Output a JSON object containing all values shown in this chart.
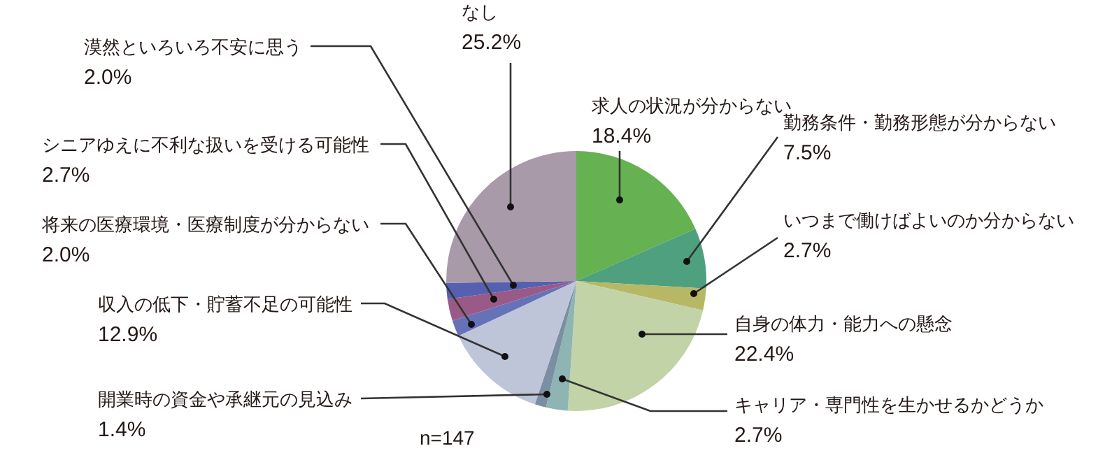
{
  "chart_data": {
    "type": "pie",
    "categories": [
      "求人の状況が分からない",
      "勤務条件・勤務形態が分からない",
      "いつまで働けばよいのか分からない",
      "自身の体力・能力への懸念",
      "キャリア・専門性を生かせるかどうか",
      "開業時の資金や承継元の見込み",
      "収入の低下・貯蓄不足の可能性",
      "将来の医療環境・医療制度が分からない",
      "シニアゆえに不利な扱いを受ける可能性",
      "漠然といろいろ不安に思う",
      "なし"
    ],
    "values": [
      18.4,
      7.5,
      2.7,
      22.4,
      2.7,
      1.4,
      12.9,
      2.0,
      2.7,
      2.0,
      25.2
    ],
    "value_labels": [
      "18.4%",
      "7.5%",
      "2.7%",
      "22.4%",
      "2.7%",
      "1.4%",
      "12.9%",
      "2.0%",
      "2.7%",
      "2.0%",
      "25.2%"
    ],
    "colors": [
      "#66b152",
      "#4ea07e",
      "#b6b866",
      "#c2d3a8",
      "#8eb4b4",
      "#7a8fa2",
      "#bfc5d8",
      "#6672b8",
      "#9a5a88",
      "#5560b0",
      "#a99aaa"
    ],
    "annotations": [
      "n=147"
    ]
  }
}
